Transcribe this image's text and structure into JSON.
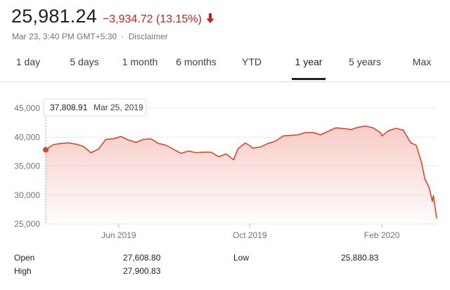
{
  "quote": {
    "price": "25,981.24",
    "change": "−3,934.72 (13.15%)",
    "direction_icon": "arrow-down-icon",
    "timestamp": "Mar 23, 3:40 PM GMT+5:30",
    "separator": "·",
    "disclaimer": "Disclaimer"
  },
  "tabs": [
    {
      "label": "1 day",
      "active": false
    },
    {
      "label": "5 days",
      "active": false
    },
    {
      "label": "1 month",
      "active": false
    },
    {
      "label": "6 months",
      "active": false
    },
    {
      "label": "YTD",
      "active": false
    },
    {
      "label": "1 year",
      "active": true
    },
    {
      "label": "5 years",
      "active": false
    },
    {
      "label": "Max",
      "active": false
    }
  ],
  "colors": {
    "line": "#d9472b",
    "fill_top": "#f7c6c0",
    "negative": "#c5221f",
    "grid": "#e8eaed",
    "text_muted": "#70757a"
  },
  "tooltip": {
    "value": "37,808.91",
    "date": "Mar 25, 2019"
  },
  "chart_data": {
    "type": "area",
    "title": "",
    "xlabel": "",
    "ylabel": "",
    "ylim": [
      25000,
      45000
    ],
    "y_ticks": [
      "45,000",
      "40,000",
      "35,000",
      "30,000",
      "25,000"
    ],
    "y_tick_values": [
      45000,
      40000,
      35000,
      30000,
      25000
    ],
    "x_ticks": [
      "Jun 2019",
      "Oct 2019",
      "Feb 2020"
    ],
    "x_tick_dates": [
      "2019-06-01",
      "2019-10-01",
      "2020-02-01"
    ],
    "x_range": [
      "2019-03-25",
      "2020-03-23"
    ],
    "grid": true,
    "series": [
      {
        "x": [
          "2019-03-25",
          "2019-04-01",
          "2019-04-08",
          "2019-04-15",
          "2019-04-22",
          "2019-04-29",
          "2019-05-06",
          "2019-05-13",
          "2019-05-20",
          "2019-05-27",
          "2019-06-03",
          "2019-06-10",
          "2019-06-17",
          "2019-06-24",
          "2019-07-01",
          "2019-07-08",
          "2019-07-15",
          "2019-07-22",
          "2019-07-29",
          "2019-08-05",
          "2019-08-12",
          "2019-08-19",
          "2019-08-26",
          "2019-09-02",
          "2019-09-09",
          "2019-09-16",
          "2019-09-20",
          "2019-09-27",
          "2019-10-04",
          "2019-10-11",
          "2019-10-18",
          "2019-10-25",
          "2019-11-01",
          "2019-11-08",
          "2019-11-15",
          "2019-11-22",
          "2019-11-29",
          "2019-12-06",
          "2019-12-13",
          "2019-12-20",
          "2019-12-27",
          "2020-01-03",
          "2020-01-10",
          "2020-01-17",
          "2020-01-24",
          "2020-01-31",
          "2020-02-01",
          "2020-02-07",
          "2020-02-14",
          "2020-02-21",
          "2020-02-28",
          "2020-03-04",
          "2020-03-09",
          "2020-03-12",
          "2020-03-16",
          "2020-03-19",
          "2020-03-20",
          "2020-03-23"
        ],
        "values": [
          37808,
          38700,
          38900,
          39000,
          38800,
          38400,
          37300,
          37900,
          39600,
          39700,
          40100,
          39500,
          39100,
          39600,
          39700,
          38900,
          38600,
          37900,
          37200,
          37600,
          37300,
          37400,
          37400,
          36600,
          37100,
          36100,
          38000,
          39000,
          38100,
          38300,
          38900,
          39300,
          40200,
          40300,
          40400,
          40800,
          40800,
          40400,
          41000,
          41600,
          41500,
          41300,
          41700,
          41900,
          41600,
          40700,
          40200,
          41100,
          41500,
          41200,
          39000,
          38600,
          35600,
          32800,
          31300,
          28900,
          29900,
          25981
        ]
      }
    ],
    "open": {
      "label": "Open",
      "value": "27,608.80"
    },
    "high": {
      "label": "High",
      "value": "27,900.83"
    },
    "low": {
      "label": "Low",
      "value": "25,880.83"
    }
  }
}
